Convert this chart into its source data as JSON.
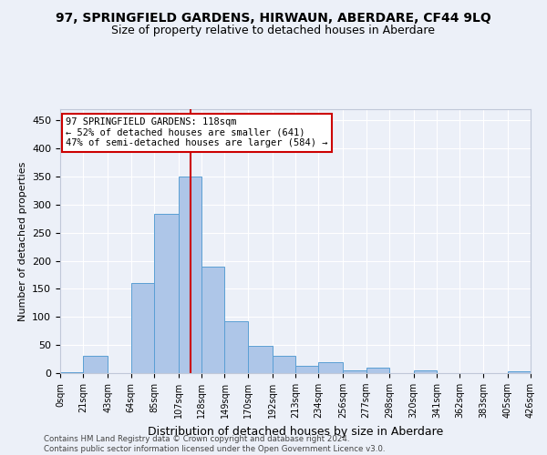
{
  "title": "97, SPRINGFIELD GARDENS, HIRWAUN, ABERDARE, CF44 9LQ",
  "subtitle": "Size of property relative to detached houses in Aberdare",
  "xlabel": "Distribution of detached houses by size in Aberdare",
  "ylabel": "Number of detached properties",
  "bar_heights": [
    2,
    30,
    0,
    160,
    283,
    350,
    190,
    92,
    48,
    31,
    13,
    19,
    5,
    10,
    0,
    5,
    0,
    0,
    0,
    3
  ],
  "bin_edges": [
    0,
    21,
    43,
    64,
    85,
    107,
    128,
    149,
    170,
    192,
    213,
    234,
    256,
    277,
    298,
    320,
    341,
    362,
    383,
    405,
    426
  ],
  "tick_labels": [
    "0sqm",
    "21sqm",
    "43sqm",
    "64sqm",
    "85sqm",
    "107sqm",
    "128sqm",
    "149sqm",
    "170sqm",
    "192sqm",
    "213sqm",
    "234sqm",
    "256sqm",
    "277sqm",
    "298sqm",
    "320sqm",
    "341sqm",
    "362sqm",
    "383sqm",
    "405sqm",
    "426sqm"
  ],
  "bar_color": "#aec6e8",
  "bar_edge_color": "#5a9fd4",
  "vline_x": 118,
  "vline_color": "#cc0000",
  "annotation_text": "97 SPRINGFIELD GARDENS: 118sqm\n← 52% of detached houses are smaller (641)\n47% of semi-detached houses are larger (584) →",
  "annotation_box_color": "#ffffff",
  "annotation_box_edge": "#cc0000",
  "ylim": [
    0,
    470
  ],
  "yticks": [
    0,
    50,
    100,
    150,
    200,
    250,
    300,
    350,
    400,
    450
  ],
  "background_color": "#ecf0f8",
  "footer_text": "Contains HM Land Registry data © Crown copyright and database right 2024.\nContains public sector information licensed under the Open Government Licence v3.0.",
  "title_fontsize": 10,
  "subtitle_fontsize": 9,
  "annotation_fontsize": 7.5,
  "tick_fontsize": 7,
  "ylabel_fontsize": 8,
  "xlabel_fontsize": 9
}
